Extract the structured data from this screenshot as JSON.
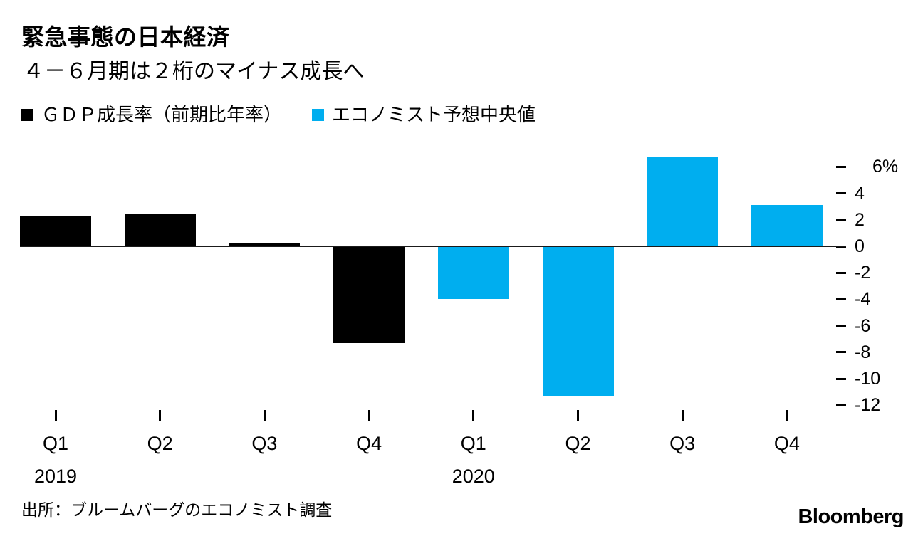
{
  "title": "緊急事態の日本経済",
  "subtitle": "４－６月期は２桁のマイナス成長へ",
  "legend": [
    {
      "label": "ＧＤＰ成長率（前期比年率）",
      "color": "#000000"
    },
    {
      "label": "エコノミスト予想中央値",
      "color": "#00AEEF"
    }
  ],
  "source": "出所：ブルームバーグのエコノミスト調査",
  "logo_text": "Bloomberg",
  "chart_data": {
    "type": "bar",
    "categories": [
      "Q1",
      "Q2",
      "Q3",
      "Q4",
      "Q1",
      "Q2",
      "Q3",
      "Q4"
    ],
    "year_labels": [
      {
        "index": 0,
        "text": "2019"
      },
      {
        "index": 4,
        "text": "2020"
      }
    ],
    "series": [
      {
        "name": "ＧＤＰ成長率（前期比年率）",
        "color": "#000000",
        "values": [
          2.3,
          2.4,
          0.2,
          -7.3,
          null,
          null,
          null,
          null
        ]
      },
      {
        "name": "エコノミスト予想中央値",
        "color": "#00AEEF",
        "values": [
          null,
          null,
          null,
          null,
          -4.0,
          -11.3,
          6.8,
          3.1
        ]
      }
    ],
    "y_ticks": [
      {
        "value": 6,
        "label": "6%"
      },
      {
        "value": 4,
        "label": "4"
      },
      {
        "value": 2,
        "label": "2"
      },
      {
        "value": 0,
        "label": "0"
      },
      {
        "value": -2,
        "label": "-2"
      },
      {
        "value": -4,
        "label": "-4"
      },
      {
        "value": -6,
        "label": "-6"
      },
      {
        "value": -8,
        "label": "-8"
      },
      {
        "value": -10,
        "label": "-10"
      },
      {
        "value": -12,
        "label": "-12"
      }
    ],
    "ylim": [
      -12.6,
      6.9
    ],
    "unit_suffix": "%",
    "grid": false,
    "legend_position": "top"
  }
}
